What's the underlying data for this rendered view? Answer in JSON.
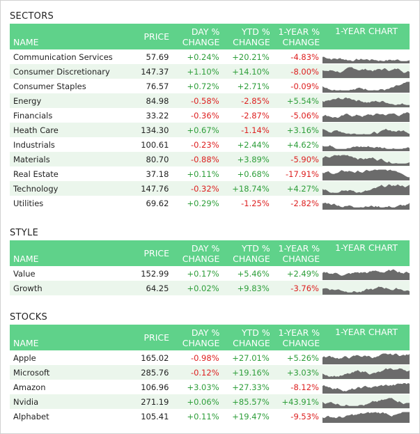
{
  "columns": {
    "name": "NAME",
    "price": "PRICE",
    "day_1": "DAY %",
    "day_2": "CHANGE",
    "ytd_1": "YTD %",
    "ytd_2": "CHANGE",
    "yr_1": "1-YEAR %",
    "yr_2": "CHANGE",
    "chart": "1-YEAR CHART"
  },
  "colors": {
    "header_bg": "#5fd28a",
    "row_alt": "#ebf6ec",
    "positive": "#2e9e3a",
    "negative": "#dd1f1f",
    "spark": "#6b6b6b"
  },
  "sections": [
    {
      "title": "SECTORS",
      "rows": [
        {
          "name": "Communication Services",
          "price": "57.69",
          "day": "+0.24%",
          "ytd": "+20.21%",
          "yr": "-4.83%"
        },
        {
          "name": "Consumer Discretionary",
          "price": "147.37",
          "day": "+1.10%",
          "ytd": "+14.10%",
          "yr": "-8.00%"
        },
        {
          "name": "Consumer Staples",
          "price": "76.57",
          "day": "+0.72%",
          "ytd": "+2.71%",
          "yr": "-0.09%"
        },
        {
          "name": "Energy",
          "price": "84.98",
          "day": "-0.58%",
          "ytd": "-2.85%",
          "yr": "+5.54%"
        },
        {
          "name": "Financials",
          "price": "33.22",
          "day": "-0.36%",
          "ytd": "-2.87%",
          "yr": "-5.06%"
        },
        {
          "name": "Heath Care",
          "price": "134.30",
          "day": "+0.67%",
          "ytd": "-1.14%",
          "yr": "+3.16%"
        },
        {
          "name": "Industrials",
          "price": "100.61",
          "day": "-0.23%",
          "ytd": "+2.44%",
          "yr": "+4.62%"
        },
        {
          "name": "Materials",
          "price": "80.70",
          "day": "-0.88%",
          "ytd": "+3.89%",
          "yr": "-5.90%"
        },
        {
          "name": "Real Estate",
          "price": "37.18",
          "day": "+0.11%",
          "ytd": "+0.68%",
          "yr": "-17.91%"
        },
        {
          "name": "Technology",
          "price": "147.76",
          "day": "-0.32%",
          "ytd": "+18.74%",
          "yr": "+4.27%"
        },
        {
          "name": "Utilities",
          "price": "69.62",
          "day": "+0.29%",
          "ytd": "-1.25%",
          "yr": "-2.82%"
        }
      ]
    },
    {
      "title": "STYLE",
      "rows": [
        {
          "name": "Value",
          "price": "152.99",
          "day": "+0.17%",
          "ytd": "+5.46%",
          "yr": "+2.49%"
        },
        {
          "name": "Growth",
          "price": "64.25",
          "day": "+0.02%",
          "ytd": "+9.83%",
          "yr": "-3.76%"
        }
      ]
    },
    {
      "title": "STOCKS",
      "rows": [
        {
          "name": "Apple",
          "price": "165.02",
          "day": "-0.98%",
          "ytd": "+27.01%",
          "yr": "+5.26%"
        },
        {
          "name": "Microsoft",
          "price": "285.76",
          "day": "-0.12%",
          "ytd": "+19.16%",
          "yr": "+3.03%"
        },
        {
          "name": "Amazon",
          "price": "106.96",
          "day": "+3.03%",
          "ytd": "+27.33%",
          "yr": "-8.12%"
        },
        {
          "name": "Nvidia",
          "price": "271.19",
          "day": "+0.06%",
          "ytd": "+85.57%",
          "yr": "+43.91%"
        },
        {
          "name": "Alphabet",
          "price": "105.41",
          "day": "+0.11%",
          "ytd": "+19.47%",
          "yr": "-9.53%"
        }
      ]
    }
  ]
}
